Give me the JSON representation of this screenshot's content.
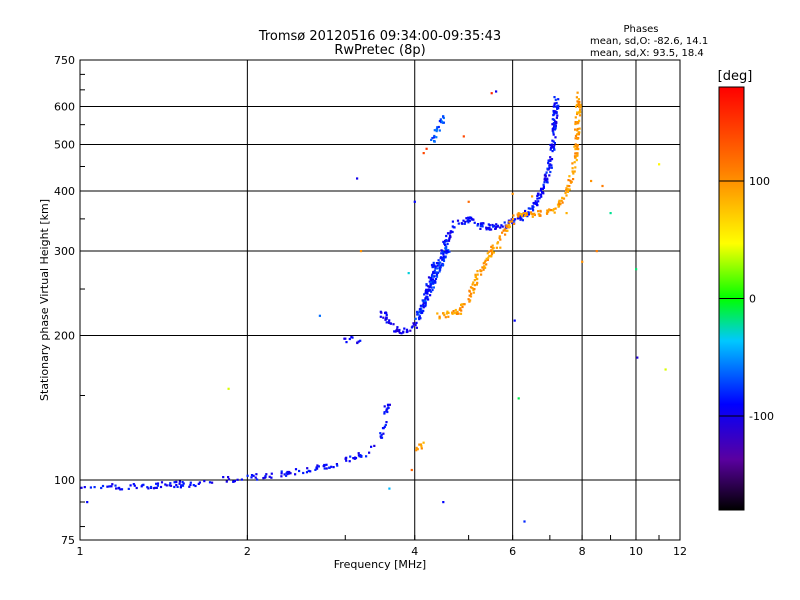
{
  "chart_data": {
    "type": "scatter",
    "title": "Tromsø 20120516 09:34:00-09:35:43",
    "subtitle": "RwPretec (8p)",
    "xlabel": "Frequency [MHz]",
    "ylabel": "Stationary phase Virtual Height [km]",
    "xscale": "log",
    "yscale": "log",
    "xlim": [
      1,
      12
    ],
    "ylim": [
      75,
      750
    ],
    "x_ticks": [
      {
        "value": 1,
        "label": "1"
      },
      {
        "value": 2,
        "label": "2"
      },
      {
        "value": 4,
        "label": "4"
      },
      {
        "value": 6,
        "label": "6"
      },
      {
        "value": 8,
        "label": "8"
      },
      {
        "value": 10,
        "label": "10"
      },
      {
        "value": 12,
        "label": "12"
      }
    ],
    "y_ticks": [
      {
        "value": 75,
        "label": "75"
      },
      {
        "value": 100,
        "label": "100"
      },
      {
        "value": 200,
        "label": "200"
      },
      {
        "value": 300,
        "label": "300"
      },
      {
        "value": 400,
        "label": "400"
      },
      {
        "value": 500,
        "label": "500"
      },
      {
        "value": 600,
        "label": "600"
      },
      {
        "value": 750,
        "label": "750"
      }
    ],
    "grid": true,
    "stats": {
      "heading": "Phases",
      "line_o": "mean, sd,O: -82.6, 14.1",
      "line_x": "mean, sd,X:  93.5, 18.4"
    },
    "colorbar": {
      "label": "[deg]",
      "range": [
        -180,
        180
      ],
      "ticks": [
        {
          "value": 100,
          "label": "100"
        },
        {
          "value": 0,
          "label": "0"
        },
        {
          "value": -100,
          "label": "-100"
        }
      ]
    },
    "series": [
      {
        "name": "O-mode",
        "phase": -82.6,
        "segments": [
          {
            "points": [
              [
                1.0,
                96
              ],
              [
                1.15,
                97
              ],
              [
                1.3,
                97
              ],
              [
                1.45,
                98
              ],
              [
                1.6,
                98
              ],
              [
                1.8,
                100
              ],
              [
                2.0,
                101
              ],
              [
                2.3,
                103
              ],
              [
                2.6,
                105
              ],
              [
                2.9,
                108
              ],
              [
                3.1,
                111
              ],
              [
                3.3,
                114
              ],
              [
                3.45,
                120
              ],
              [
                3.52,
                128
              ],
              [
                3.56,
                140
              ],
              [
                3.58,
                148
              ]
            ],
            "n": 170,
            "phase": -92
          },
          {
            "points": [
              [
                3.0,
                197
              ],
              [
                3.2,
                195
              ]
            ],
            "n": 10,
            "phase": -95
          },
          {
            "points": [
              [
                3.5,
                222
              ],
              [
                3.62,
                212
              ],
              [
                3.75,
                203
              ],
              [
                3.9,
                205
              ],
              [
                4.05,
                212
              ]
            ],
            "n": 45,
            "phase": -98
          },
          {
            "points": [
              [
                4.05,
                218
              ],
              [
                4.2,
                245
              ],
              [
                4.35,
                280
              ],
              [
                4.55,
                315
              ],
              [
                4.75,
                345
              ],
              [
                5.0,
                348
              ],
              [
                5.3,
                338
              ],
              [
                5.6,
                336
              ],
              [
                5.9,
                340
              ],
              [
                6.2,
                352
              ],
              [
                6.5,
                368
              ],
              [
                6.8,
                400
              ],
              [
                7.0,
                450
              ],
              [
                7.1,
                520
              ],
              [
                7.15,
                570
              ],
              [
                7.2,
                630
              ]
            ],
            "n": 300,
            "phase": -90
          },
          {
            "points": [
              [
                4.05,
                218
              ],
              [
                4.2,
                240
              ],
              [
                4.4,
                275
              ],
              [
                4.6,
                305
              ]
            ],
            "n": 100,
            "phase": -80
          },
          {
            "points": [
              [
                4.3,
                510
              ],
              [
                4.5,
                570
              ]
            ],
            "n": 25,
            "phase": -70
          }
        ]
      },
      {
        "name": "X-mode",
        "phase": 93.5,
        "segments": [
          {
            "points": [
              [
                4.4,
                220
              ],
              [
                4.6,
                222
              ],
              [
                4.8,
                225
              ],
              [
                5.0,
                238
              ],
              [
                5.2,
                270
              ],
              [
                5.5,
                300
              ],
              [
                5.8,
                330
              ],
              [
                6.1,
                355
              ],
              [
                6.5,
                358
              ],
              [
                7.0,
                362
              ],
              [
                7.3,
                375
              ],
              [
                7.6,
                410
              ],
              [
                7.8,
                480
              ],
              [
                7.85,
                560
              ],
              [
                7.9,
                640
              ]
            ],
            "n": 260,
            "phase": 95
          },
          {
            "points": [
              [
                4.0,
                115
              ],
              [
                4.15,
                120
              ]
            ],
            "n": 8,
            "phase": 90
          }
        ]
      }
    ],
    "outliers": [
      [
        1.03,
        90,
        -90
      ],
      [
        1.85,
        155,
        40
      ],
      [
        2.7,
        220,
        -60
      ],
      [
        3.15,
        425,
        -100
      ],
      [
        3.2,
        300,
        100
      ],
      [
        3.6,
        96,
        -40
      ],
      [
        3.9,
        270,
        -30
      ],
      [
        3.95,
        105,
        125
      ],
      [
        4.0,
        380,
        -90
      ],
      [
        4.15,
        480,
        140
      ],
      [
        4.2,
        490,
        150
      ],
      [
        4.5,
        90,
        -90
      ],
      [
        4.9,
        520,
        140
      ],
      [
        5.0,
        380,
        120
      ],
      [
        5.5,
        640,
        160
      ],
      [
        5.6,
        645,
        -100
      ],
      [
        5.7,
        305,
        90
      ],
      [
        6.0,
        395,
        100
      ],
      [
        6.05,
        215,
        -90
      ],
      [
        6.15,
        148,
        -10
      ],
      [
        6.3,
        82,
        -80
      ],
      [
        6.5,
        390,
        95
      ],
      [
        7.5,
        360,
        85
      ],
      [
        8.0,
        285,
        100
      ],
      [
        8.3,
        420,
        100
      ],
      [
        8.5,
        300,
        110
      ],
      [
        8.7,
        410,
        110
      ],
      [
        9.0,
        360,
        -20
      ],
      [
        10.0,
        275,
        -15
      ],
      [
        10.05,
        180,
        -110
      ],
      [
        11.0,
        455,
        50
      ],
      [
        11.3,
        170,
        40
      ]
    ]
  }
}
